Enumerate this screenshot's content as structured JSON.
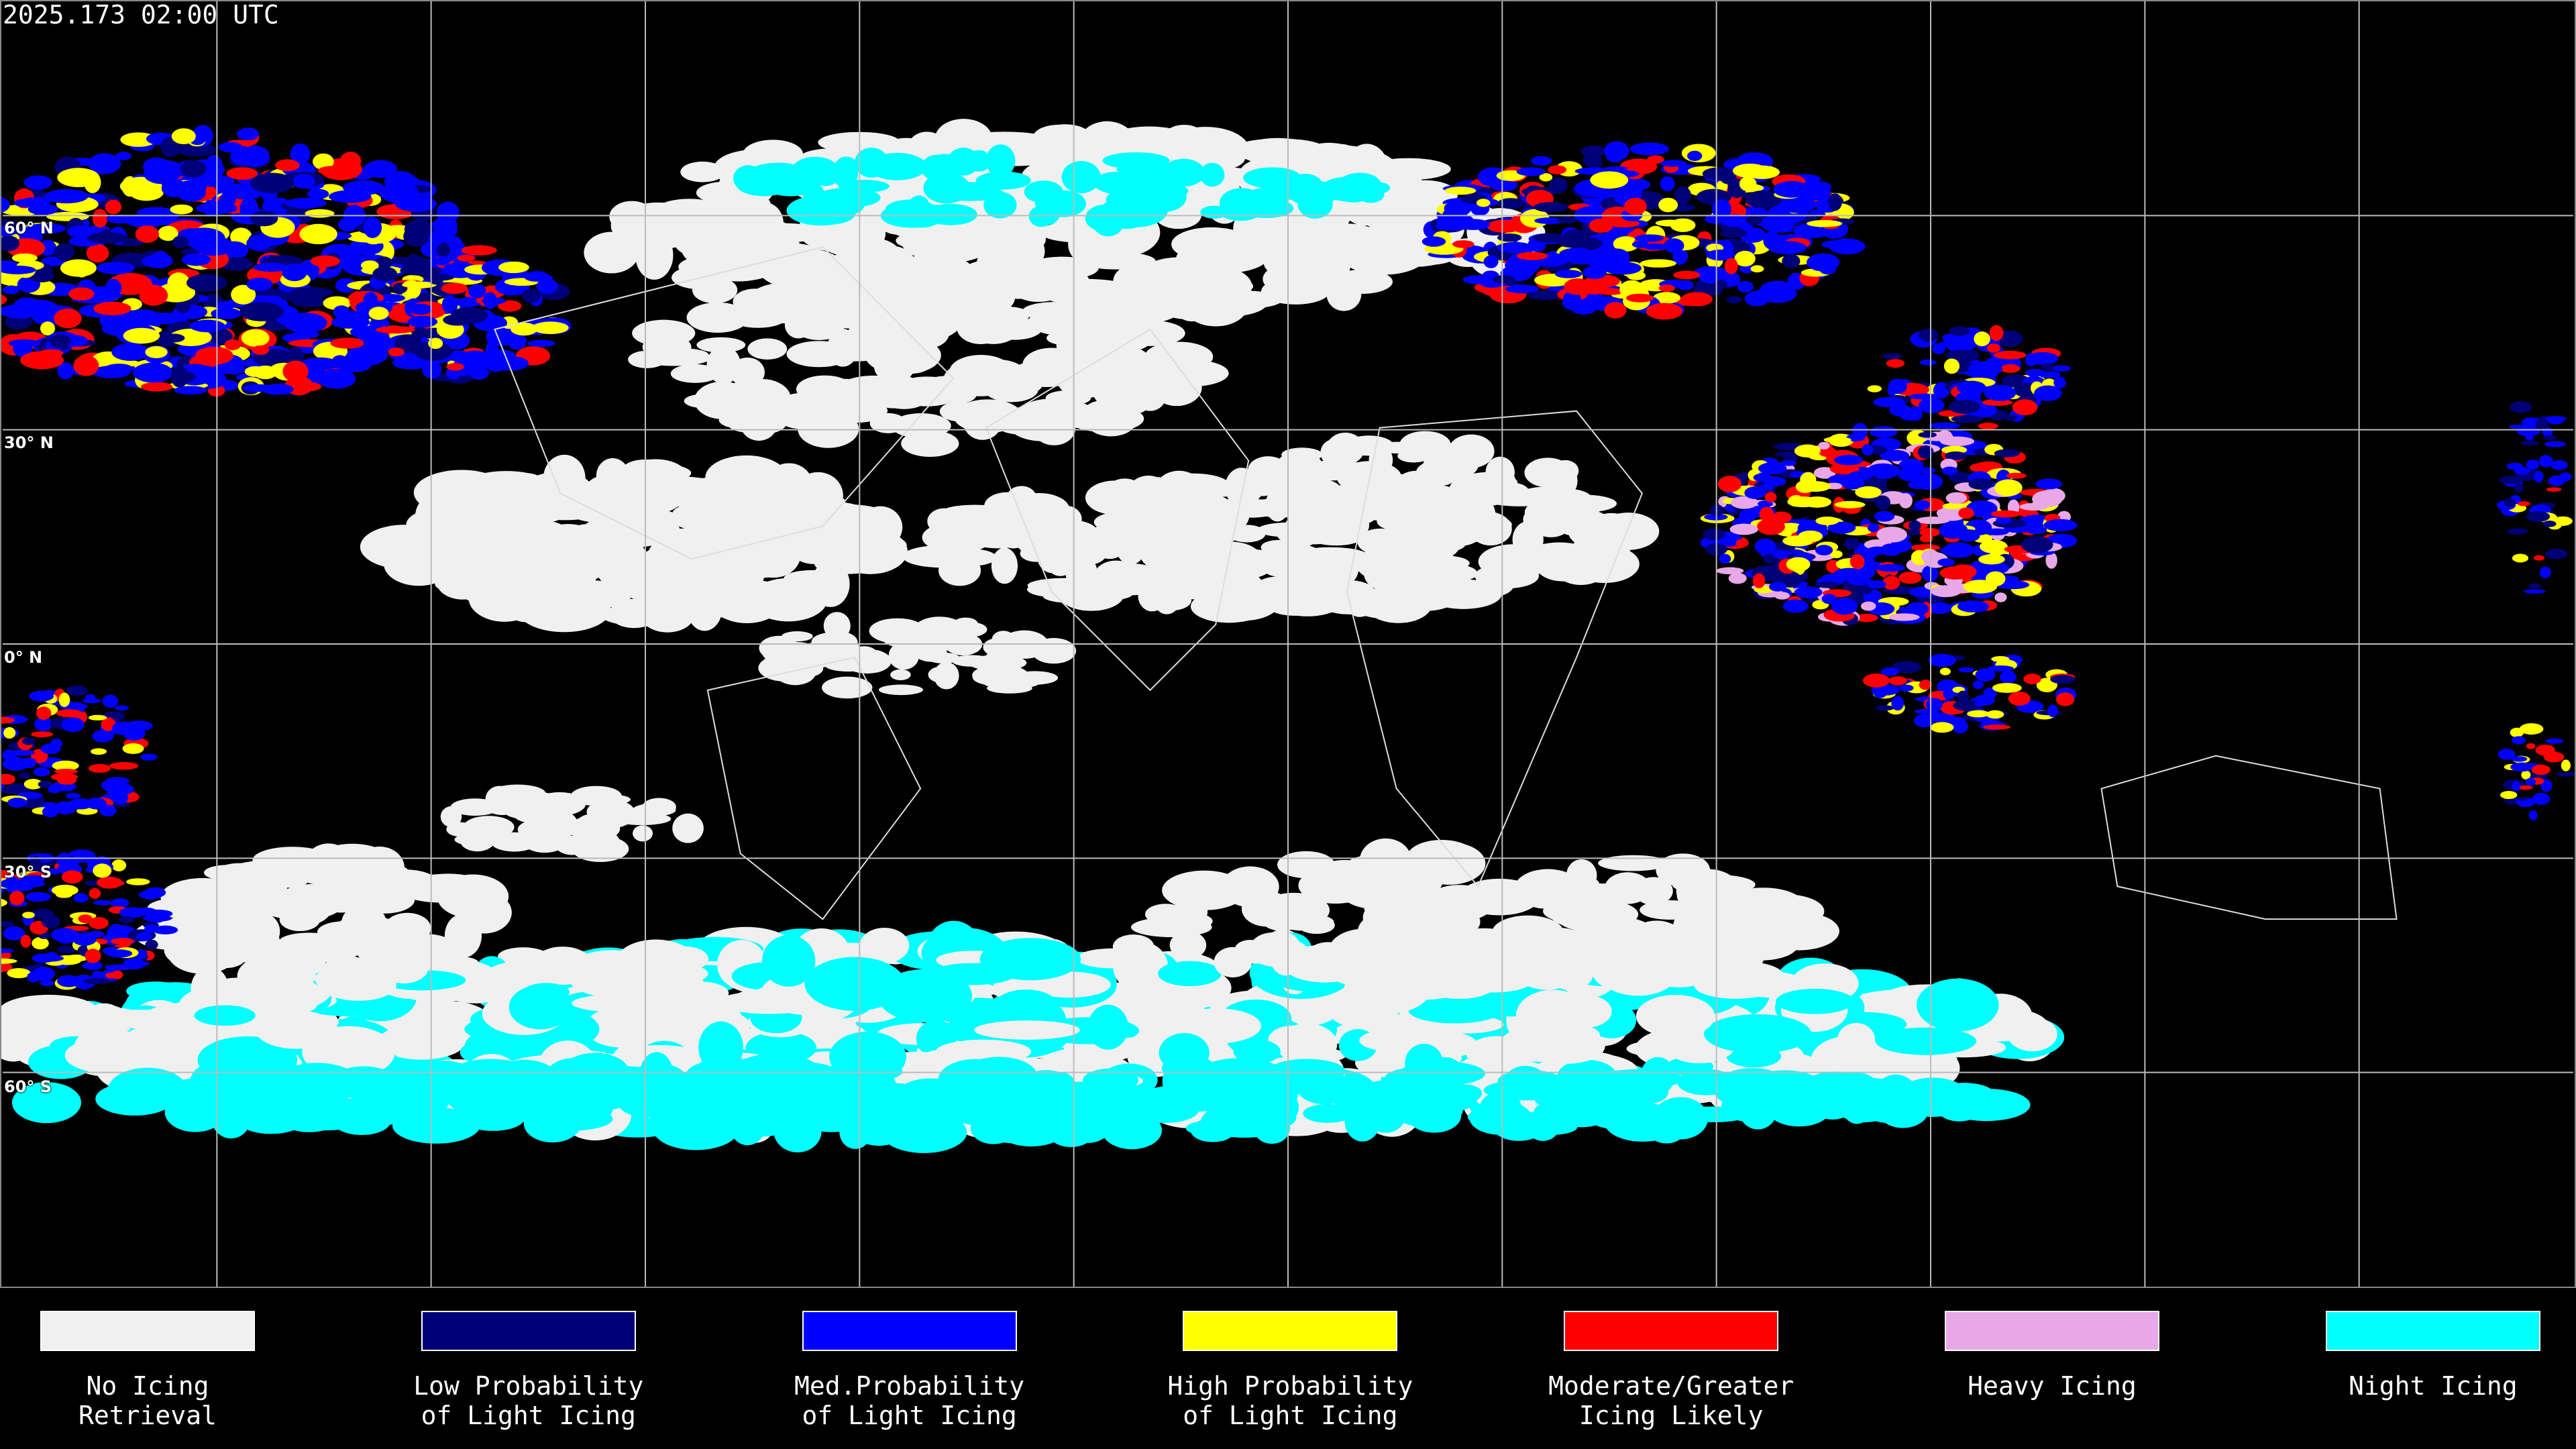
{
  "title": "2025.173 02:00 UTC",
  "map": {
    "projection": "equirectangular",
    "grid_spacing_degrees": 30,
    "latitude_labels": [
      {
        "label": "60° N",
        "lat": 60
      },
      {
        "label": "30° N",
        "lat": 30
      },
      {
        "label": "0° N",
        "lat": 0
      },
      {
        "label": "30° S",
        "lat": -30
      },
      {
        "label": "60° S",
        "lat": -60
      }
    ]
  },
  "legend": [
    {
      "line1": "No Icing",
      "line2": "Retrieval",
      "color": "#f0f0f0"
    },
    {
      "line1": "Low Probability",
      "line2": "of Light Icing",
      "color": "#000078"
    },
    {
      "line1": "Med.Probability",
      "line2": "of Light Icing",
      "color": "#0000ff"
    },
    {
      "line1": "High Probability",
      "line2": "of Light Icing",
      "color": "#ffff00"
    },
    {
      "line1": "Moderate/Greater",
      "line2": "Icing Likely",
      "color": "#ff0000"
    },
    {
      "line1": "Heavy Icing",
      "line2": "",
      "color": "#e8a8e8"
    },
    {
      "line1": "Night Icing",
      "line2": "",
      "color": "#00ffff"
    }
  ]
}
